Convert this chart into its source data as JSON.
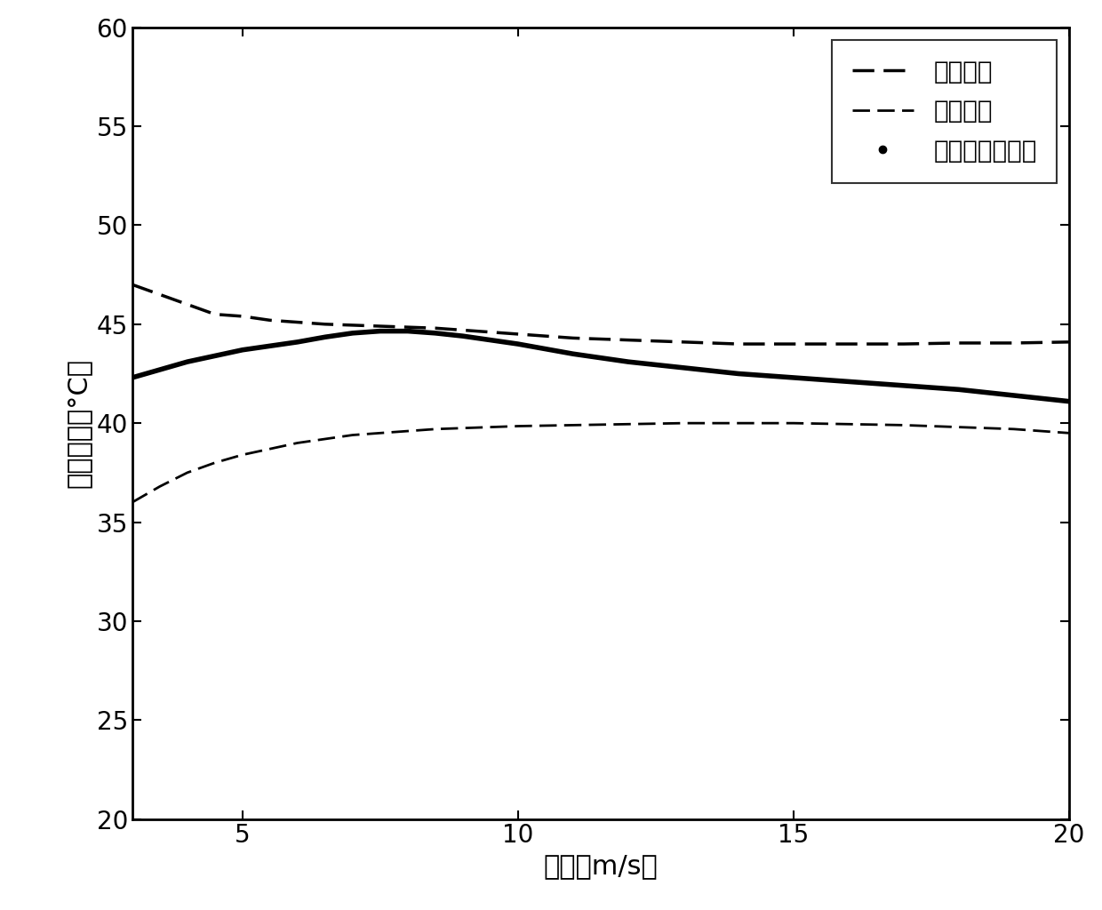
{
  "xlabel": "风速（m/s）",
  "ylabel": "主轴温度（°C）",
  "xlim": [
    3,
    20
  ],
  "ylim": [
    20,
    60
  ],
  "xticks": [
    5,
    10,
    15,
    20
  ],
  "yticks": [
    20,
    25,
    30,
    35,
    40,
    45,
    50,
    55,
    60
  ],
  "legend_labels": [
    "预警上限",
    "预警下限",
    "运行最大温度値"
  ],
  "upper_x": [
    3.0,
    3.5,
    4.0,
    4.5,
    5.0,
    5.5,
    6.0,
    6.5,
    7.0,
    7.5,
    8.0,
    8.5,
    9.0,
    9.5,
    10.0,
    11.0,
    12.0,
    13.0,
    14.0,
    15.0,
    16.0,
    17.0,
    18.0,
    19.0,
    20.0
  ],
  "upper_y": [
    47.0,
    46.5,
    46.0,
    45.5,
    45.4,
    45.2,
    45.1,
    45.0,
    44.95,
    44.9,
    44.85,
    44.8,
    44.7,
    44.6,
    44.5,
    44.3,
    44.2,
    44.1,
    44.0,
    44.0,
    44.0,
    44.0,
    44.05,
    44.05,
    44.1
  ],
  "lower_x": [
    3.0,
    3.5,
    4.0,
    4.5,
    5.0,
    5.5,
    6.0,
    6.5,
    7.0,
    7.5,
    8.0,
    8.5,
    9.0,
    9.5,
    10.0,
    11.0,
    12.0,
    13.0,
    14.0,
    15.0,
    16.0,
    17.0,
    18.0,
    19.0,
    20.0
  ],
  "lower_y": [
    36.0,
    36.8,
    37.5,
    38.0,
    38.4,
    38.7,
    39.0,
    39.2,
    39.4,
    39.5,
    39.6,
    39.7,
    39.75,
    39.8,
    39.85,
    39.9,
    39.95,
    40.0,
    40.0,
    40.0,
    39.95,
    39.9,
    39.8,
    39.7,
    39.5
  ],
  "main_x": [
    3.0,
    3.5,
    4.0,
    4.5,
    5.0,
    5.5,
    6.0,
    6.5,
    7.0,
    7.5,
    8.0,
    8.5,
    9.0,
    9.5,
    10.0,
    11.0,
    12.0,
    13.0,
    14.0,
    15.0,
    16.0,
    17.0,
    18.0,
    19.0,
    20.0
  ],
  "main_y": [
    42.3,
    42.7,
    43.1,
    43.4,
    43.7,
    43.9,
    44.1,
    44.35,
    44.55,
    44.65,
    44.65,
    44.55,
    44.4,
    44.2,
    44.0,
    43.5,
    43.1,
    42.8,
    42.5,
    42.3,
    42.1,
    41.9,
    41.7,
    41.4,
    41.1
  ],
  "background_color": "#ffffff",
  "line_color": "#000000",
  "label_font_size": 22,
  "tick_font_size": 20,
  "legend_font_size": 20,
  "linewidth_solid": 4.0,
  "linewidth_dashed_upper": 2.5,
  "linewidth_dashed_lower": 2.0
}
